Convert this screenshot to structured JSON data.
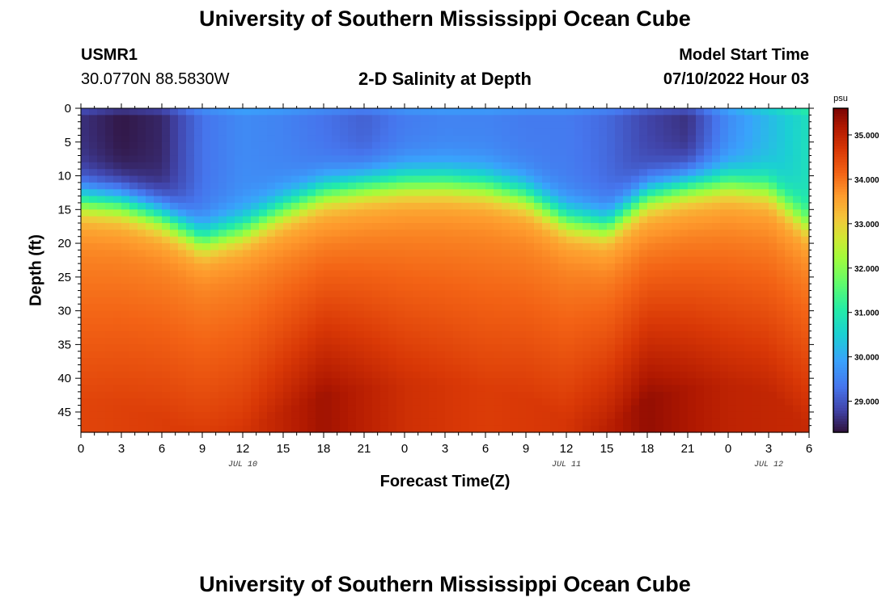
{
  "page": {
    "title": "University of Southern Mississippi Ocean Cube",
    "station_id": "USMR1",
    "station_coords": "30.0770N  88.5830W",
    "plot_title": "2-D Salinity at Depth",
    "model_start_label": "Model Start Time",
    "model_start_value": "07/10/2022 Hour 03",
    "footer_title": "University of Southern Mississippi Ocean Cube"
  },
  "chart_data": {
    "type": "heatmap",
    "title": "2-D Salinity at Depth",
    "xlabel": "Forecast Time(Z)",
    "ylabel": "Depth (ft)",
    "x_range_hours": [
      0,
      54
    ],
    "x_ticks": [
      "0",
      "3",
      "6",
      "9",
      "12",
      "15",
      "18",
      "21",
      "0",
      "3",
      "6",
      "9",
      "12",
      "15",
      "18",
      "21",
      "0",
      "3",
      "6"
    ],
    "date_labels": [
      {
        "label": "JUL 10",
        "at_hour": 12
      },
      {
        "label": "JUL 11",
        "at_hour": 36
      },
      {
        "label": "JUL 12",
        "at_hour": 51
      }
    ],
    "y_range_ft": [
      0,
      48
    ],
    "y_ticks": [
      0,
      5,
      10,
      15,
      20,
      25,
      30,
      35,
      40,
      45
    ],
    "colorbar": {
      "unit": "psu",
      "range": [
        28.3,
        35.6
      ],
      "tick_labels": [
        "35.000",
        "34.000",
        "33.000",
        "32.000",
        "31.000",
        "30.000",
        "29.000"
      ],
      "tick_values": [
        35,
        34,
        33,
        32,
        31,
        30,
        29
      ]
    },
    "field_model": {
      "description": "salinity psu vs forecast hour (x) and depth ft (y)",
      "halocline_depth_ft": [
        [
          0,
          13.5
        ],
        [
          3,
          14
        ],
        [
          6,
          16
        ],
        [
          9,
          19.5
        ],
        [
          12,
          18
        ],
        [
          15,
          15
        ],
        [
          18,
          12.5
        ],
        [
          21,
          11.5
        ],
        [
          24,
          11
        ],
        [
          27,
          11
        ],
        [
          30,
          11.5
        ],
        [
          33,
          13
        ],
        [
          36,
          16.5
        ],
        [
          39,
          17.5
        ],
        [
          42,
          13
        ],
        [
          45,
          11.5
        ],
        [
          48,
          11
        ],
        [
          51,
          12
        ],
        [
          54,
          17.5
        ]
      ],
      "surface_salinity": [
        [
          0,
          28.6
        ],
        [
          3,
          28.35
        ],
        [
          6,
          28.5
        ],
        [
          9,
          29.3
        ],
        [
          12,
          29.6
        ],
        [
          15,
          29.5
        ],
        [
          18,
          29.3
        ],
        [
          21,
          29.1
        ],
        [
          24,
          29.4
        ],
        [
          27,
          29.5
        ],
        [
          30,
          29.5
        ],
        [
          33,
          29.4
        ],
        [
          36,
          29.4
        ],
        [
          39,
          29.2
        ],
        [
          42,
          28.8
        ],
        [
          45,
          28.6
        ],
        [
          48,
          29.6
        ],
        [
          51,
          30.2
        ],
        [
          54,
          30.8
        ]
      ],
      "deep_salinity_by_hour": [
        [
          0,
          34.5
        ],
        [
          6,
          34.6
        ],
        [
          12,
          34.7
        ],
        [
          18,
          35.3
        ],
        [
          24,
          34.8
        ],
        [
          30,
          34.6
        ],
        [
          36,
          34.7
        ],
        [
          42,
          35.4
        ],
        [
          48,
          35.0
        ],
        [
          54,
          34.9
        ]
      ]
    }
  }
}
